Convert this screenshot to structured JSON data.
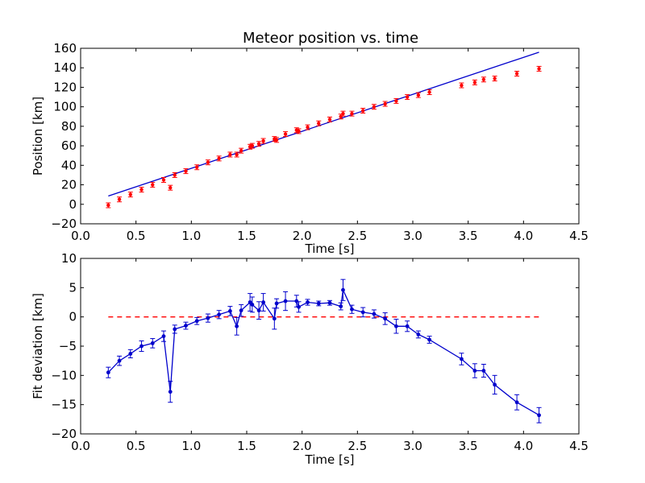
{
  "chart_data": [
    {
      "type": "scatter",
      "title": "Meteor position vs. time",
      "xlabel": "Time [s]",
      "ylabel": "Position [km]",
      "xlim": [
        0.0,
        4.5
      ],
      "ylim": [
        -20,
        160
      ],
      "xticks": [
        "0.0",
        "0.5",
        "1.0",
        "1.5",
        "2.0",
        "2.5",
        "3.0",
        "3.5",
        "4.0",
        "4.5"
      ],
      "yticks": [
        "−20",
        "0",
        "20",
        "40",
        "60",
        "80",
        "100",
        "120",
        "140",
        "160"
      ],
      "grid": false,
      "colors": {
        "points": "#ff0000",
        "fit": "#0000cc"
      },
      "series": [
        {
          "kind": "points",
          "x": [
            0.25,
            0.35,
            0.45,
            0.55,
            0.65,
            0.75,
            0.81,
            0.85,
            0.95,
            1.05,
            1.15,
            1.25,
            1.35,
            1.41,
            1.45,
            1.53,
            1.55,
            1.61,
            1.65,
            1.75,
            1.77,
            1.85,
            1.95,
            1.97,
            2.05,
            2.15,
            2.25,
            2.35,
            2.37,
            2.45,
            2.55,
            2.65,
            2.75,
            2.85,
            2.95,
            3.05,
            3.15,
            3.44,
            3.56,
            3.64,
            3.74,
            3.94,
            4.14
          ],
          "y": [
            -1,
            5,
            10,
            15,
            20,
            25,
            17,
            30,
            34,
            38,
            43,
            47,
            51,
            51,
            55,
            59,
            60,
            62,
            65,
            67,
            66,
            72,
            76,
            75,
            79,
            83,
            87,
            90,
            93,
            93,
            96,
            100,
            103,
            106,
            110,
            112,
            115,
            122,
            125,
            128,
            129,
            134,
            139
          ]
        },
        {
          "kind": "fit-line",
          "x": [
            0.25,
            4.14
          ],
          "y": [
            8.5,
            156
          ]
        }
      ]
    },
    {
      "type": "line",
      "xlabel": "Time [s]",
      "ylabel": "Fit deviation [km]",
      "xlim": [
        0.0,
        4.5
      ],
      "ylim": [
        -20,
        10
      ],
      "xticks": [
        "0.0",
        "0.5",
        "1.0",
        "1.5",
        "2.0",
        "2.5",
        "3.0",
        "3.5",
        "4.0",
        "4.5"
      ],
      "yticks": [
        "−20",
        "−15",
        "−10",
        "−5",
        "0",
        "5",
        "10"
      ],
      "grid": false,
      "colors": {
        "line": "#0000cc",
        "zero": "#ff0000"
      },
      "zero_line": {
        "x": [
          0.25,
          4.14
        ],
        "y": 0
      },
      "series": [
        {
          "x": [
            0.25,
            0.35,
            0.45,
            0.55,
            0.65,
            0.75,
            0.81,
            0.85,
            0.95,
            1.05,
            1.15,
            1.25,
            1.35,
            1.41,
            1.45,
            1.53,
            1.55,
            1.61,
            1.65,
            1.75,
            1.77,
            1.85,
            1.95,
            1.97,
            2.05,
            2.15,
            2.25,
            2.35,
            2.37,
            2.45,
            2.55,
            2.65,
            2.75,
            2.85,
            2.95,
            3.05,
            3.15,
            3.44,
            3.56,
            3.64,
            3.74,
            3.94,
            4.14
          ],
          "y": [
            -9.5,
            -7.5,
            -6.3,
            -5.0,
            -4.5,
            -3.3,
            -12.8,
            -2.1,
            -1.5,
            -0.7,
            -0.2,
            0.4,
            1.0,
            -1.6,
            1.1,
            2.5,
            2.1,
            1.1,
            2.5,
            -0.3,
            2.3,
            2.7,
            2.7,
            1.7,
            2.5,
            2.3,
            2.4,
            1.8,
            4.6,
            1.3,
            0.8,
            0.5,
            -0.3,
            -1.6,
            -1.6,
            -3.0,
            -3.9,
            -7.2,
            -9.2,
            -9.2,
            -11.6,
            -14.6,
            -16.8
          ],
          "err": [
            0.9,
            0.8,
            0.7,
            0.9,
            0.8,
            0.9,
            1.8,
            0.7,
            0.6,
            0.6,
            0.7,
            0.7,
            0.8,
            1.5,
            1.0,
            1.5,
            1.3,
            1.5,
            1.5,
            1.8,
            0.8,
            1.6,
            1.0,
            0.9,
            0.5,
            0.4,
            0.4,
            0.6,
            1.8,
            0.7,
            0.8,
            0.7,
            1.0,
            1.2,
            0.9,
            0.6,
            0.6,
            1.0,
            1.2,
            1.1,
            1.6,
            1.3,
            1.3
          ]
        }
      ]
    }
  ]
}
